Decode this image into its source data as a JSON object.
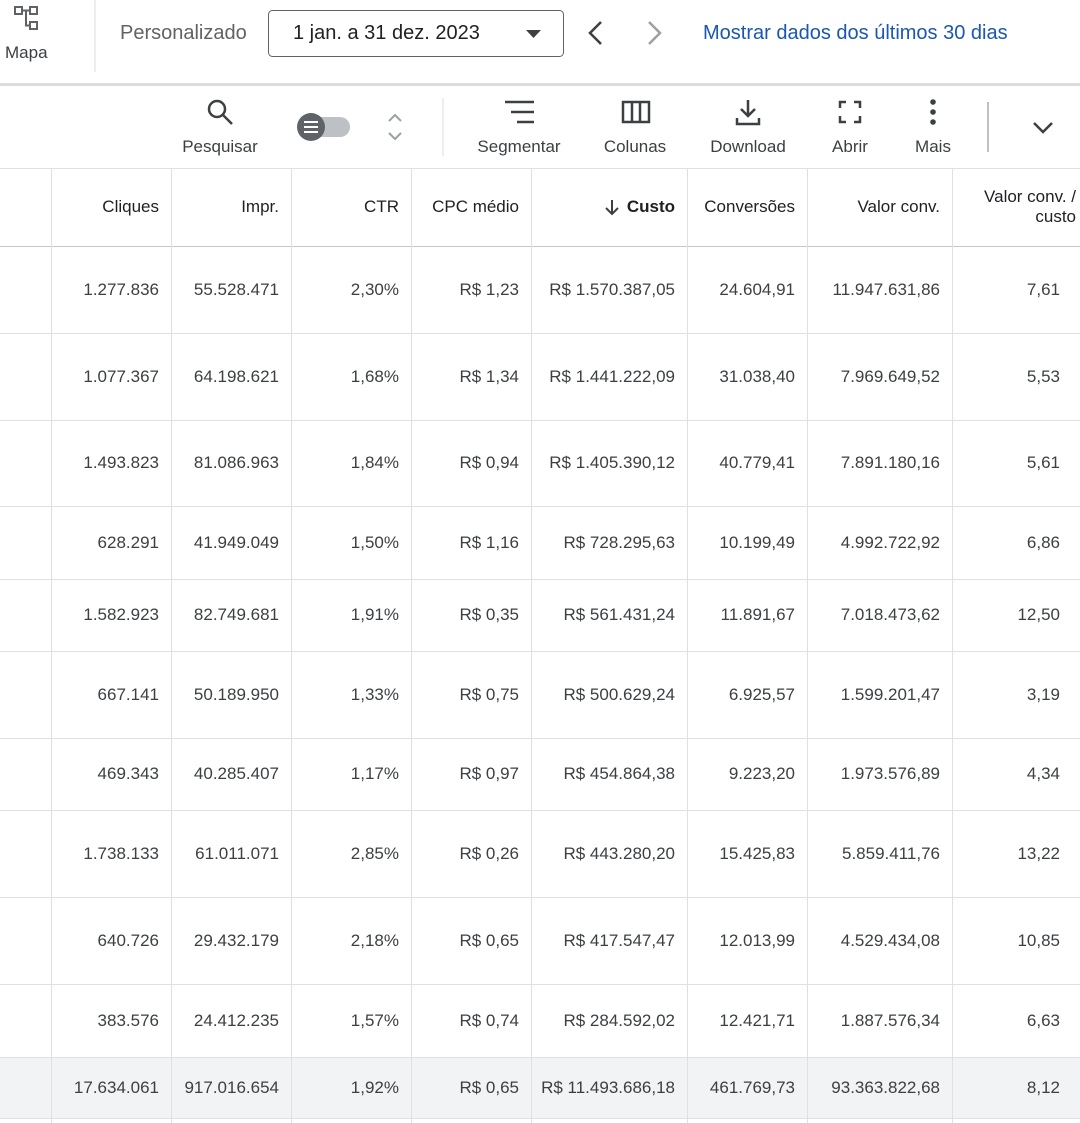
{
  "top_bar": {
    "map_label": "Mapa",
    "range_label": "Personalizado",
    "date_range": "1 jan. a 31 dez. 2023",
    "link": "Mostrar dados dos últimos 30 dias"
  },
  "toolbar": {
    "search": "Pesquisar",
    "segment": "Segmentar",
    "columns": "Colunas",
    "download": "Download",
    "open": "Abrir",
    "more": "Mais"
  },
  "table": {
    "headers": [
      "Cliques",
      "Impr.",
      "CTR",
      "CPC médio",
      "Custo",
      "Conversões",
      "Valor conv.",
      "Valor conv. / custo"
    ],
    "rows": [
      [
        "1.277.836",
        "55.528.471",
        "2,30%",
        "R$ 1,23",
        "R$ 1.570.387,05",
        "24.604,91",
        "11.947.631,86",
        "7,61"
      ],
      [
        "1.077.367",
        "64.198.621",
        "1,68%",
        "R$ 1,34",
        "R$ 1.441.222,09",
        "31.038,40",
        "7.969.649,52",
        "5,53"
      ],
      [
        "1.493.823",
        "81.086.963",
        "1,84%",
        "R$ 0,94",
        "R$ 1.405.390,12",
        "40.779,41",
        "7.891.180,16",
        "5,61"
      ],
      [
        "628.291",
        "41.949.049",
        "1,50%",
        "R$ 1,16",
        "R$ 728.295,63",
        "10.199,49",
        "4.992.722,92",
        "6,86"
      ],
      [
        "1.582.923",
        "82.749.681",
        "1,91%",
        "R$ 0,35",
        "R$ 561.431,24",
        "11.891,67",
        "7.018.473,62",
        "12,50"
      ],
      [
        "667.141",
        "50.189.950",
        "1,33%",
        "R$ 0,75",
        "R$ 500.629,24",
        "6.925,57",
        "1.599.201,47",
        "3,19"
      ],
      [
        "469.343",
        "40.285.407",
        "1,17%",
        "R$ 0,97",
        "R$ 454.864,38",
        "9.223,20",
        "1.973.576,89",
        "4,34"
      ],
      [
        "1.738.133",
        "61.011.071",
        "2,85%",
        "R$ 0,26",
        "R$ 443.280,20",
        "15.425,83",
        "5.859.411,76",
        "13,22"
      ],
      [
        "640.726",
        "29.432.179",
        "2,18%",
        "R$ 0,65",
        "R$ 417.547,47",
        "12.013,99",
        "4.529.434,08",
        "10,85"
      ],
      [
        "383.576",
        "24.412.235",
        "1,57%",
        "R$ 0,74",
        "R$ 284.592,02",
        "12.421,71",
        "1.887.576,34",
        "6,63"
      ]
    ],
    "total": [
      "17.634.061",
      "917.016.654",
      "1,92%",
      "R$ 0,65",
      "R$ 11.493.686,18",
      "461.769,73",
      "93.363.822,68",
      "8,12"
    ]
  }
}
